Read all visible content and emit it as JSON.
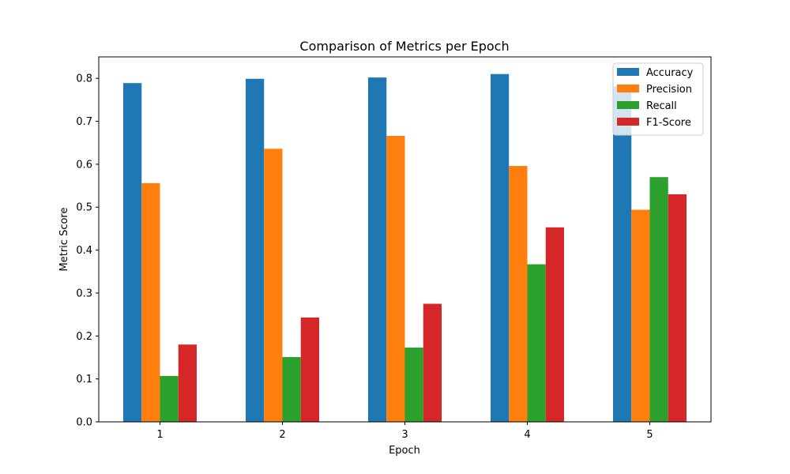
{
  "chart_data": {
    "type": "bar",
    "title": "Comparison of Metrics per Epoch",
    "xlabel": "Epoch",
    "ylabel": "Metric Score",
    "categories": [
      "1",
      "2",
      "3",
      "4",
      "5"
    ],
    "series": [
      {
        "name": "Accuracy",
        "color": "#1f77b4",
        "values": [
          0.789,
          0.799,
          0.802,
          0.81,
          0.781
        ]
      },
      {
        "name": "Precision",
        "color": "#ff7f0e",
        "values": [
          0.556,
          0.636,
          0.666,
          0.596,
          0.494
        ]
      },
      {
        "name": "Recall",
        "color": "#2ca02c",
        "values": [
          0.107,
          0.151,
          0.173,
          0.367,
          0.57
        ]
      },
      {
        "name": "F1-Score",
        "color": "#d62728",
        "values": [
          0.18,
          0.243,
          0.275,
          0.453,
          0.53
        ]
      }
    ],
    "ylim": [
      0,
      0.85
    ],
    "yticks": [
      "0.0",
      "0.1",
      "0.2",
      "0.3",
      "0.4",
      "0.5",
      "0.6",
      "0.7",
      "0.8"
    ],
    "grid": false,
    "legend_position": "top-right"
  }
}
